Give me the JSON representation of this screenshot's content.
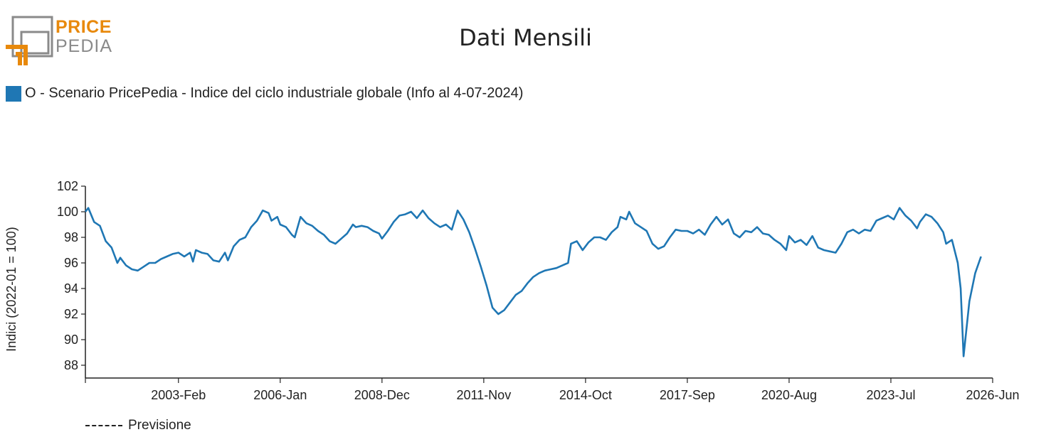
{
  "logo": {
    "word1": "PRICE",
    "word2": "PEDIA",
    "accent_color": "#e8890c",
    "gray_color": "#8a8a8a"
  },
  "title": "Dati Mensili",
  "legend": {
    "label": "O - Scenario PricePedia - Indice del ciclo industriale globale (Info al 4-07-2024)",
    "color": "#1f77b4"
  },
  "footer_legend": {
    "label": "Previsione"
  },
  "chart_data": {
    "type": "line",
    "ylabel": "Indici (2022-01 = 100)",
    "ylim": [
      87,
      102
    ],
    "yticks": [
      88,
      90,
      92,
      94,
      96,
      98,
      100,
      102
    ],
    "x_start": "2000-06",
    "x_end": "2026-06",
    "xticks": [
      "2003-Feb",
      "2006-Jan",
      "2008-Dec",
      "2011-Nov",
      "2014-Oct",
      "2017-Sep",
      "2020-Aug",
      "2023-Jul",
      "2026-Jun"
    ],
    "series": [
      {
        "name": "O - Scenario PricePedia - Indice del ciclo industriale globale (Info al 4-07-2024)",
        "color": "#1f77b4",
        "points": [
          [
            "2000-06",
            100.0
          ],
          [
            "2000-07",
            100.3
          ],
          [
            "2000-09",
            99.2
          ],
          [
            "2000-11",
            98.9
          ],
          [
            "2001-01",
            97.7
          ],
          [
            "2001-03",
            97.2
          ],
          [
            "2001-05",
            96.0
          ],
          [
            "2001-06",
            96.4
          ],
          [
            "2001-08",
            95.8
          ],
          [
            "2001-10",
            95.5
          ],
          [
            "2001-12",
            95.4
          ],
          [
            "2002-02",
            95.7
          ],
          [
            "2002-04",
            96.0
          ],
          [
            "2002-06",
            96.0
          ],
          [
            "2002-08",
            96.3
          ],
          [
            "2002-10",
            96.5
          ],
          [
            "2002-12",
            96.7
          ],
          [
            "2003-02",
            96.8
          ],
          [
            "2003-04",
            96.5
          ],
          [
            "2003-06",
            96.8
          ],
          [
            "2003-07",
            96.1
          ],
          [
            "2003-08",
            97.0
          ],
          [
            "2003-10",
            96.8
          ],
          [
            "2003-12",
            96.7
          ],
          [
            "2004-02",
            96.2
          ],
          [
            "2004-04",
            96.1
          ],
          [
            "2004-06",
            96.8
          ],
          [
            "2004-07",
            96.2
          ],
          [
            "2004-09",
            97.3
          ],
          [
            "2004-11",
            97.8
          ],
          [
            "2005-01",
            98.0
          ],
          [
            "2005-03",
            98.8
          ],
          [
            "2005-05",
            99.3
          ],
          [
            "2005-07",
            100.1
          ],
          [
            "2005-09",
            99.9
          ],
          [
            "2005-10",
            99.3
          ],
          [
            "2005-12",
            99.6
          ],
          [
            "2006-01",
            99.0
          ],
          [
            "2006-03",
            98.8
          ],
          [
            "2006-05",
            98.2
          ],
          [
            "2006-06",
            98.0
          ],
          [
            "2006-08",
            99.6
          ],
          [
            "2006-10",
            99.1
          ],
          [
            "2006-12",
            98.9
          ],
          [
            "2007-02",
            98.5
          ],
          [
            "2007-04",
            98.2
          ],
          [
            "2007-06",
            97.7
          ],
          [
            "2007-08",
            97.5
          ],
          [
            "2007-10",
            97.9
          ],
          [
            "2007-12",
            98.3
          ],
          [
            "2008-02",
            99.0
          ],
          [
            "2008-03",
            98.8
          ],
          [
            "2008-05",
            98.9
          ],
          [
            "2008-07",
            98.8
          ],
          [
            "2008-09",
            98.5
          ],
          [
            "2008-11",
            98.3
          ],
          [
            "2008-12",
            97.9
          ],
          [
            "2009-02",
            98.5
          ],
          [
            "2009-04",
            99.2
          ],
          [
            "2009-06",
            99.7
          ],
          [
            "2009-08",
            99.8
          ],
          [
            "2009-10",
            100.0
          ],
          [
            "2009-12",
            99.5
          ],
          [
            "2010-02",
            100.1
          ],
          [
            "2010-04",
            99.5
          ],
          [
            "2010-06",
            99.1
          ],
          [
            "2010-08",
            98.8
          ],
          [
            "2010-10",
            99.0
          ],
          [
            "2010-12",
            98.6
          ],
          [
            "2011-02",
            100.1
          ],
          [
            "2011-04",
            99.4
          ],
          [
            "2011-06",
            98.4
          ],
          [
            "2011-08",
            97.1
          ],
          [
            "2011-10",
            95.7
          ],
          [
            "2011-12",
            94.2
          ],
          [
            "2012-02",
            92.5
          ],
          [
            "2012-04",
            92.0
          ],
          [
            "2012-06",
            92.3
          ],
          [
            "2012-08",
            92.9
          ],
          [
            "2012-10",
            93.5
          ],
          [
            "2012-12",
            93.8
          ],
          [
            "2013-02",
            94.4
          ],
          [
            "2013-04",
            94.9
          ],
          [
            "2013-06",
            95.2
          ],
          [
            "2013-08",
            95.4
          ],
          [
            "2013-10",
            95.5
          ],
          [
            "2013-12",
            95.6
          ],
          [
            "2014-02",
            95.8
          ],
          [
            "2014-04",
            96.0
          ],
          [
            "2014-05",
            97.5
          ],
          [
            "2014-07",
            97.7
          ],
          [
            "2014-09",
            97.0
          ],
          [
            "2014-11",
            97.6
          ],
          [
            "2015-01",
            98.0
          ],
          [
            "2015-03",
            98.0
          ],
          [
            "2015-05",
            97.8
          ],
          [
            "2015-07",
            98.4
          ],
          [
            "2015-09",
            98.8
          ],
          [
            "2015-10",
            99.6
          ],
          [
            "2015-12",
            99.4
          ],
          [
            "2016-01",
            100.0
          ],
          [
            "2016-03",
            99.1
          ],
          [
            "2016-05",
            98.8
          ],
          [
            "2016-07",
            98.5
          ],
          [
            "2016-09",
            97.5
          ],
          [
            "2016-11",
            97.1
          ],
          [
            "2017-01",
            97.3
          ],
          [
            "2017-03",
            98.0
          ],
          [
            "2017-05",
            98.6
          ],
          [
            "2017-07",
            98.5
          ],
          [
            "2017-09",
            98.5
          ],
          [
            "2017-11",
            98.3
          ],
          [
            "2018-01",
            98.6
          ],
          [
            "2018-03",
            98.2
          ],
          [
            "2018-05",
            99.0
          ],
          [
            "2018-07",
            99.6
          ],
          [
            "2018-09",
            99.0
          ],
          [
            "2018-11",
            99.4
          ],
          [
            "2019-01",
            98.3
          ],
          [
            "2019-03",
            98.0
          ],
          [
            "2019-05",
            98.5
          ],
          [
            "2019-07",
            98.4
          ],
          [
            "2019-09",
            98.8
          ],
          [
            "2019-11",
            98.3
          ],
          [
            "2020-01",
            98.2
          ],
          [
            "2020-03",
            97.8
          ],
          [
            "2020-05",
            97.5
          ],
          [
            "2020-07",
            97.0
          ],
          [
            "2020-08",
            98.1
          ],
          [
            "2020-10",
            97.6
          ],
          [
            "2020-12",
            97.8
          ],
          [
            "2021-02",
            97.4
          ],
          [
            "2021-04",
            98.1
          ],
          [
            "2021-06",
            97.2
          ],
          [
            "2021-08",
            97.0
          ],
          [
            "2021-10",
            96.9
          ],
          [
            "2021-12",
            96.8
          ],
          [
            "2022-02",
            97.5
          ],
          [
            "2022-04",
            98.4
          ],
          [
            "2022-06",
            98.6
          ],
          [
            "2022-08",
            98.3
          ],
          [
            "2022-10",
            98.6
          ],
          [
            "2022-12",
            98.5
          ],
          [
            "2023-02",
            99.3
          ],
          [
            "2023-04",
            99.5
          ],
          [
            "2023-06",
            99.7
          ],
          [
            "2023-08",
            99.4
          ],
          [
            "2023-10",
            100.3
          ],
          [
            "2023-12",
            99.7
          ],
          [
            "2024-02",
            99.3
          ],
          [
            "2024-04",
            98.7
          ],
          [
            "2024-05",
            99.2
          ],
          [
            "2024-07",
            99.8
          ],
          [
            "2024-09",
            99.6
          ],
          [
            "2024-11",
            99.1
          ],
          [
            "2025-01",
            98.4
          ],
          [
            "2025-02",
            97.5
          ],
          [
            "2025-04",
            97.8
          ],
          [
            "2025-06",
            96.0
          ],
          [
            "2025-07",
            94.0
          ],
          [
            "2025-08",
            88.7
          ],
          [
            "2025-10",
            93.0
          ],
          [
            "2025-12",
            95.2
          ],
          [
            "2026-02",
            96.5
          ]
        ]
      }
    ]
  }
}
